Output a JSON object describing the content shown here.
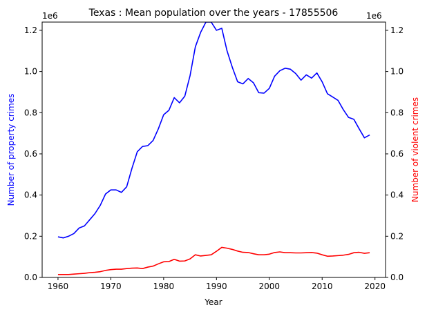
{
  "chart_data": {
    "type": "line",
    "title": "Texas : Mean population over the years - 17855506",
    "xlabel": "Year",
    "ylabel_left": "Number of property crimes",
    "ylabel_right": "Number of violent crimes",
    "offset_text_left": "1e6",
    "offset_text_right": "1e6",
    "xlim": [
      1957,
      2022
    ],
    "ylim": [
      0,
      1240000
    ],
    "x_ticks": [
      1960,
      1970,
      1980,
      1990,
      2000,
      2010,
      2020
    ],
    "y_ticks": [
      0.0,
      0.2,
      0.4,
      0.6,
      0.8,
      1.0,
      1.2
    ],
    "y_tick_scale": 1000000,
    "colors": {
      "left_axis": "#0000ff",
      "right_axis": "#ff0000"
    },
    "x": [
      1960,
      1961,
      1962,
      1963,
      1964,
      1965,
      1966,
      1967,
      1968,
      1969,
      1970,
      1971,
      1972,
      1973,
      1974,
      1975,
      1976,
      1977,
      1978,
      1979,
      1980,
      1981,
      1982,
      1983,
      1984,
      1985,
      1986,
      1987,
      1988,
      1989,
      1990,
      1991,
      1992,
      1993,
      1994,
      1995,
      1996,
      1997,
      1998,
      1999,
      2000,
      2001,
      2002,
      2003,
      2004,
      2005,
      2006,
      2007,
      2008,
      2009,
      2010,
      2011,
      2012,
      2013,
      2014,
      2015,
      2016,
      2017,
      2018,
      2019
    ],
    "series": [
      {
        "name": "Number of property crimes",
        "axis": "left",
        "color": "#0000ff",
        "values": [
          197000,
          192000,
          200000,
          213000,
          240000,
          250000,
          280000,
          310000,
          350000,
          405000,
          425000,
          425000,
          413000,
          440000,
          530000,
          610000,
          636000,
          640000,
          665000,
          722000,
          790000,
          812000,
          873000,
          848000,
          880000,
          980000,
          1120000,
          1190000,
          1240000,
          1240000,
          1200000,
          1210000,
          1100000,
          1020000,
          950000,
          940000,
          966000,
          945000,
          897000,
          895000,
          918000,
          977000,
          1004000,
          1016000,
          1011000,
          990000,
          958000,
          984000,
          968000,
          993000,
          950000,
          892000,
          876000,
          860000,
          815000,
          777000,
          768000,
          722000,
          678000,
          692000
        ]
      },
      {
        "name": "Number of violent crimes",
        "axis": "right",
        "color": "#ff0000",
        "values": [
          14000,
          14000,
          14000,
          16000,
          18000,
          20000,
          23000,
          25000,
          28000,
          34000,
          38000,
          40000,
          40000,
          43000,
          45000,
          46000,
          43000,
          50000,
          55000,
          66000,
          76000,
          77000,
          88000,
          79000,
          80000,
          90000,
          110000,
          104000,
          107000,
          110000,
          127000,
          146000,
          142000,
          136000,
          128000,
          122000,
          121000,
          115000,
          110000,
          110000,
          113000,
          121000,
          124000,
          120000,
          120000,
          119000,
          119000,
          120000,
          121000,
          118000,
          110000,
          103000,
          104000,
          106000,
          108000,
          112000,
          120000,
          122000,
          117000,
          120000
        ]
      }
    ]
  }
}
